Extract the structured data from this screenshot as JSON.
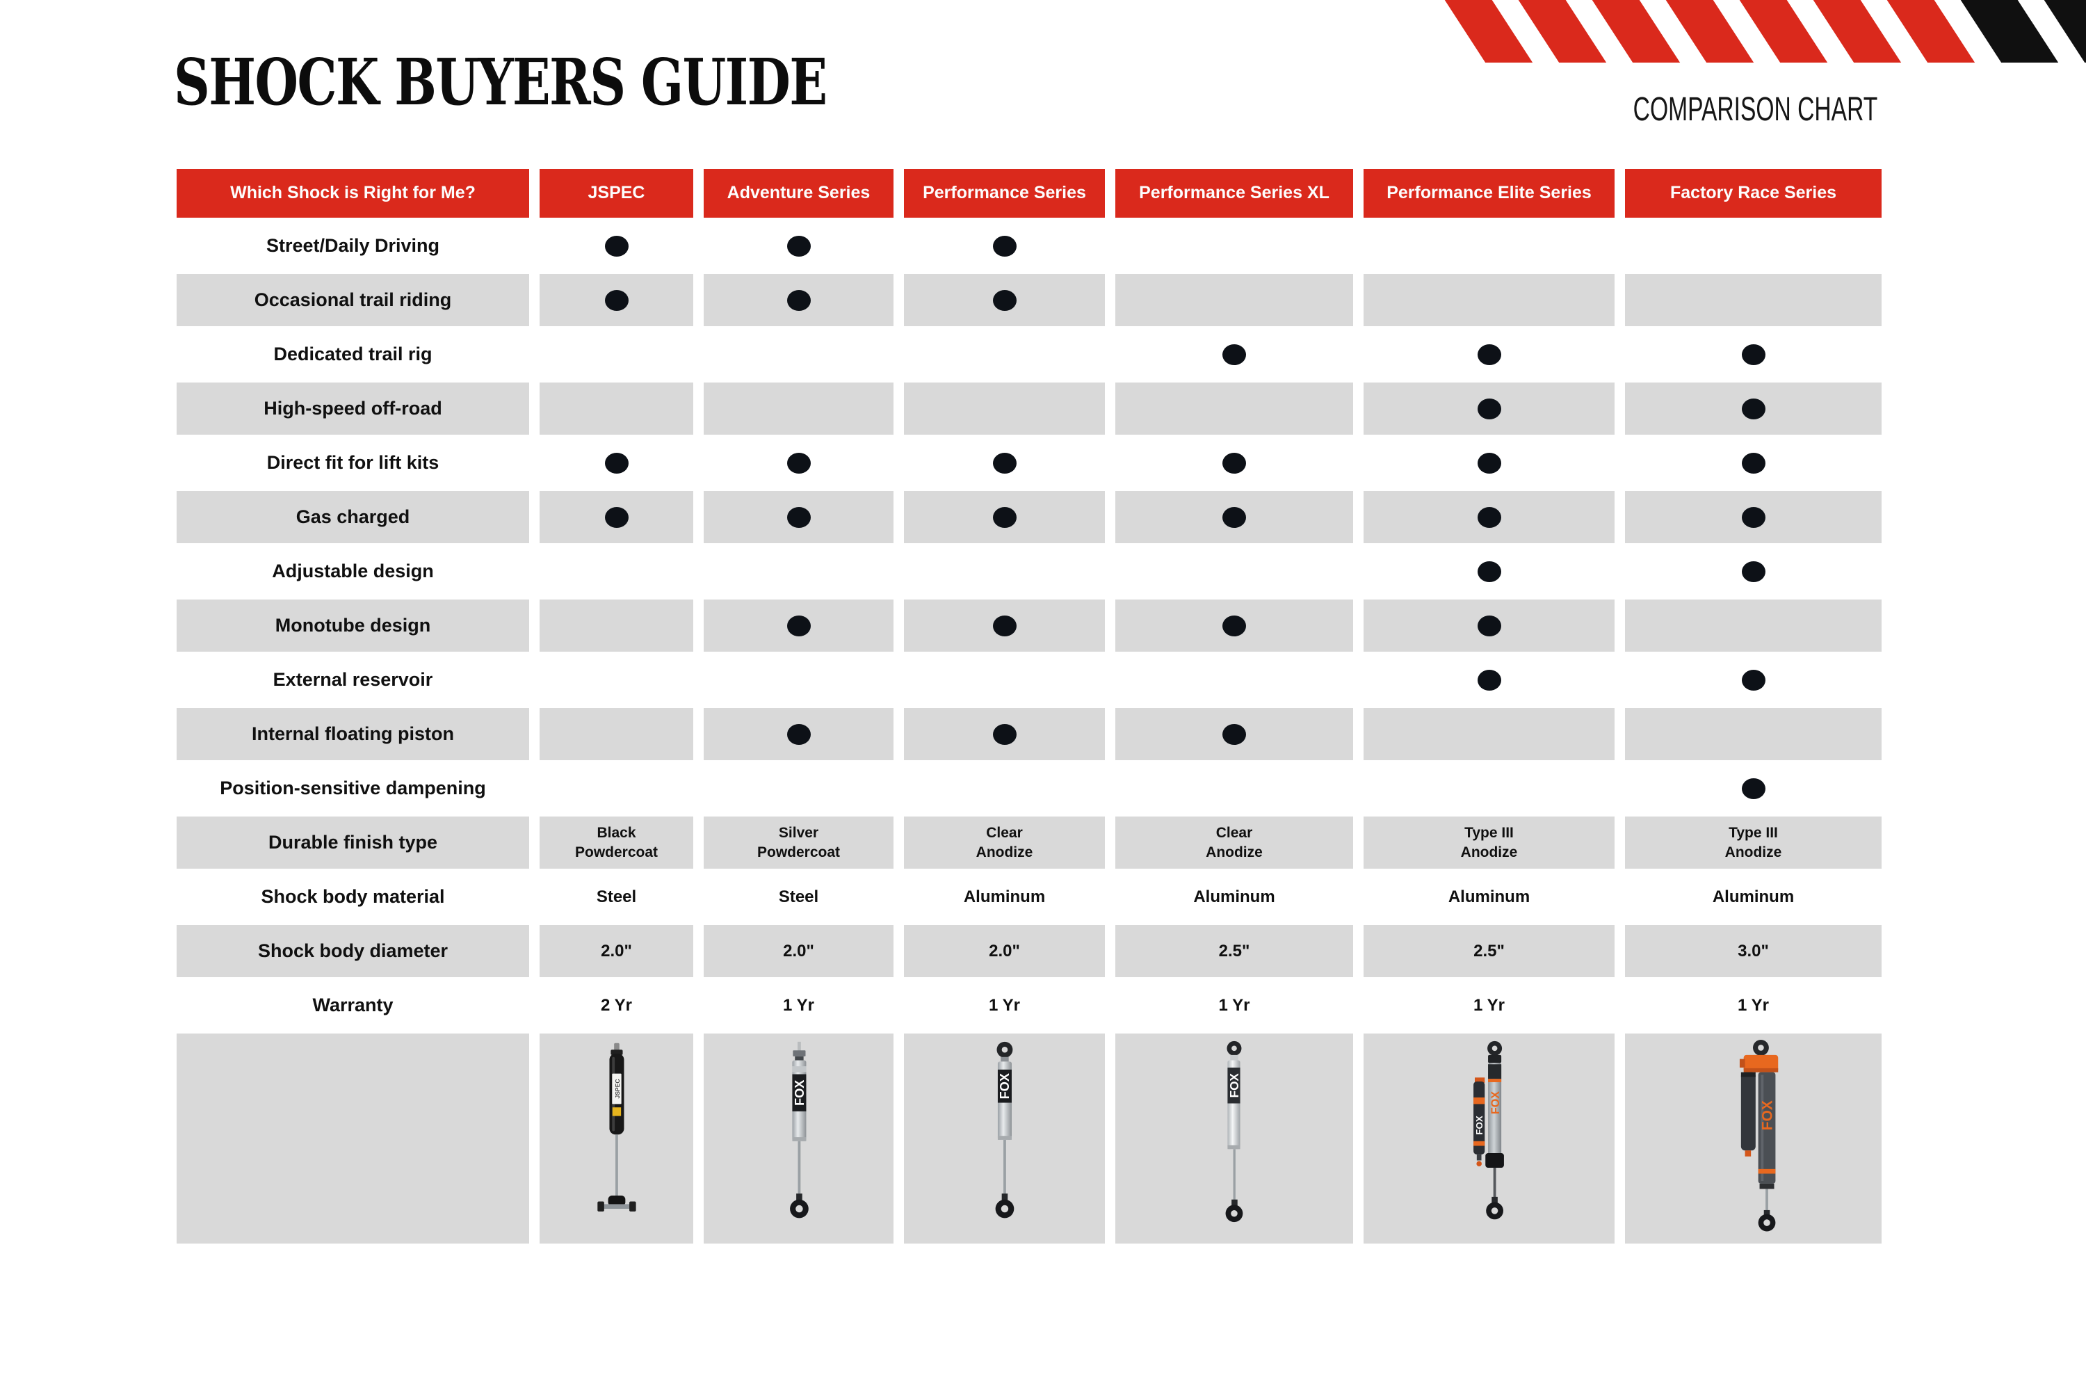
{
  "page": {
    "title": "SHOCK BUYERS GUIDE",
    "subtitle": "COMPARISON CHART"
  },
  "colors": {
    "accent_red": "#da291c",
    "cell_gray": "#d9d9d9",
    "dot_black": "#0d1117",
    "fox_orange": "#e8681f"
  },
  "legend": {
    "dot_meaning": "feature applies to this series"
  },
  "chart_data": {
    "type": "table",
    "title": "SHOCK BUYERS GUIDE",
    "subtitle": "COMPARISON CHART",
    "columns": [
      "Which Shock is Right for Me?",
      "JSPEC",
      "Adventure Series",
      "Performance Series",
      "Performance Series XL",
      "Performance Elite Series",
      "Factory Race Series"
    ],
    "rows": [
      {
        "label": "Street/Daily Driving",
        "kind": "dots",
        "values": [
          1,
          1,
          1,
          0,
          0,
          0
        ]
      },
      {
        "label": "Occasional trail riding",
        "kind": "dots",
        "values": [
          1,
          1,
          1,
          0,
          0,
          0
        ]
      },
      {
        "label": "Dedicated trail rig",
        "kind": "dots",
        "values": [
          0,
          0,
          0,
          1,
          1,
          1
        ]
      },
      {
        "label": "High-speed off-road",
        "kind": "dots",
        "values": [
          0,
          0,
          0,
          0,
          1,
          1
        ]
      },
      {
        "label": "Direct fit for lift kits",
        "kind": "dots",
        "values": [
          1,
          1,
          1,
          1,
          1,
          1
        ]
      },
      {
        "label": "Gas charged",
        "kind": "dots",
        "values": [
          1,
          1,
          1,
          1,
          1,
          1
        ]
      },
      {
        "label": "Adjustable design",
        "kind": "dots",
        "values": [
          0,
          0,
          0,
          0,
          1,
          1
        ]
      },
      {
        "label": "Monotube design",
        "kind": "dots",
        "values": [
          0,
          1,
          1,
          1,
          1,
          0
        ]
      },
      {
        "label": "External reservoir",
        "kind": "dots",
        "values": [
          0,
          0,
          0,
          0,
          1,
          1
        ]
      },
      {
        "label": "Internal floating piston",
        "kind": "dots",
        "values": [
          0,
          1,
          1,
          1,
          0,
          0
        ]
      },
      {
        "label": "Position-sensitive dampening",
        "kind": "dots",
        "values": [
          0,
          0,
          0,
          0,
          0,
          1
        ]
      },
      {
        "label": "Durable finish type",
        "kind": "text",
        "values": [
          [
            "Black",
            "Powdercoat"
          ],
          [
            "Silver",
            "Powdercoat"
          ],
          [
            "Clear",
            "Anodize"
          ],
          [
            "Clear",
            "Anodize"
          ],
          [
            "Type III",
            "Anodize"
          ],
          [
            "Type III",
            "Anodize"
          ]
        ]
      },
      {
        "label": "Shock body material",
        "kind": "text",
        "values": [
          "Steel",
          "Steel",
          "Aluminum",
          "Aluminum",
          "Aluminum",
          "Aluminum"
        ]
      },
      {
        "label": "Shock body diameter",
        "kind": "text",
        "values": [
          "2.0\"",
          "2.0\"",
          "2.0\"",
          "2.5\"",
          "2.5\"",
          "3.0\""
        ]
      },
      {
        "label": "Warranty",
        "kind": "text",
        "values": [
          "2 Yr",
          "1 Yr",
          "1 Yr",
          "1 Yr",
          "1 Yr",
          "1 Yr"
        ]
      }
    ],
    "products": [
      {
        "key": "jspec",
        "logo": "JSPEC"
      },
      {
        "key": "adventure",
        "logo": "FOX"
      },
      {
        "key": "performance",
        "logo": "FOX"
      },
      {
        "key": "xl",
        "logo": "FOX"
      },
      {
        "key": "elite",
        "logo": "FOX"
      },
      {
        "key": "factory",
        "logo": "FOX"
      }
    ]
  }
}
